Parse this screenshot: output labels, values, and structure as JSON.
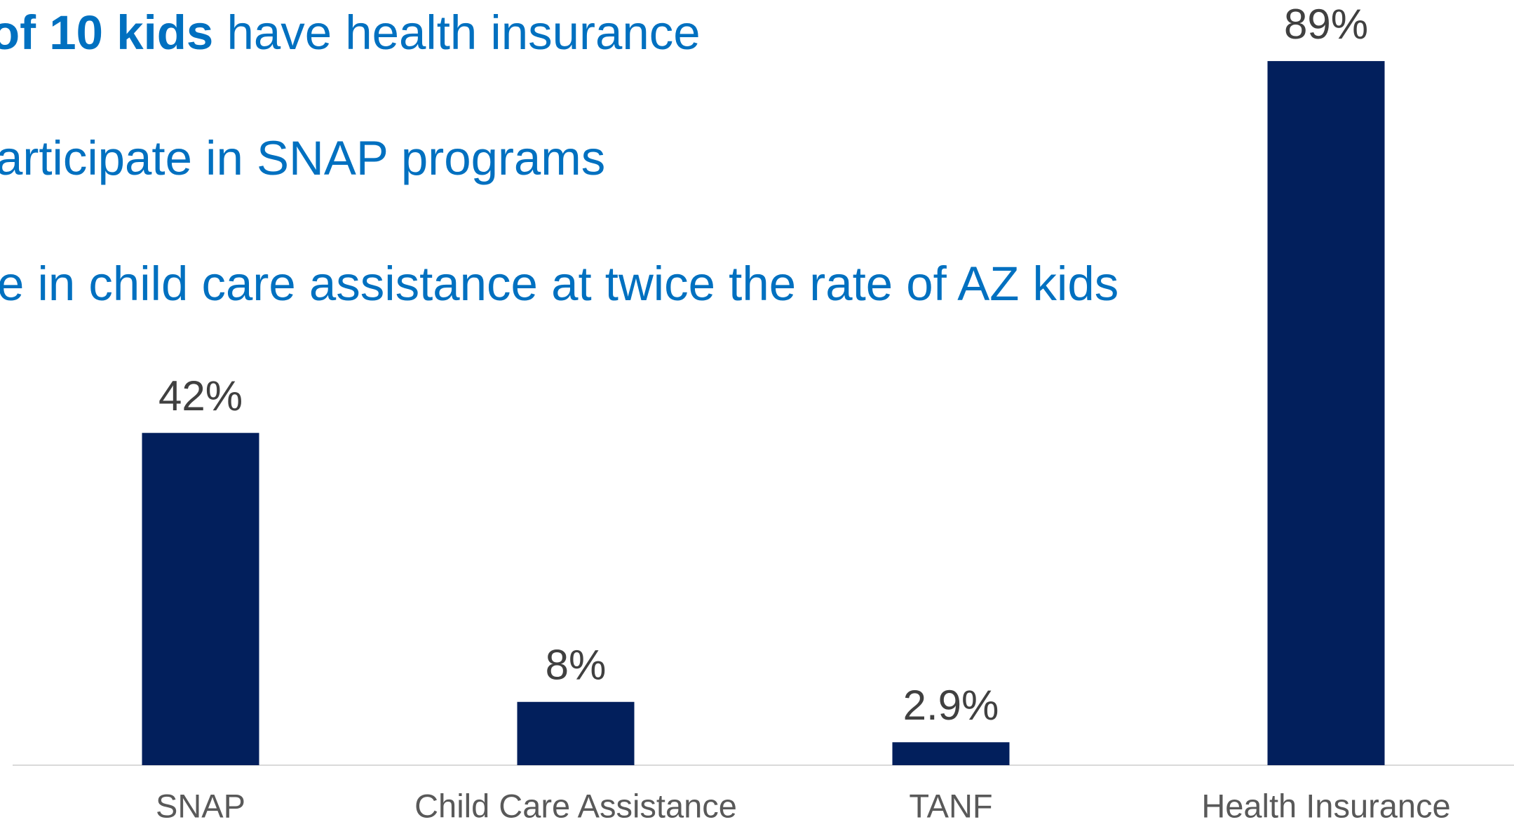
{
  "chart_data": {
    "type": "bar",
    "annotations": [
      {
        "bold": "of 10 kids",
        "text": "have health insurance"
      },
      {
        "text": "articipate in SNAP programs"
      },
      {
        "text": "e in child care assistance at twice the rate of AZ kids"
      }
    ],
    "categories": [
      "SNAP",
      "Child Care Assistance",
      "TANF",
      "Health Insurance"
    ],
    "values": [
      42,
      8,
      2.9,
      89
    ],
    "value_labels": [
      "42%",
      "8%",
      "2.9%",
      "89%"
    ],
    "color": "#021f5c",
    "ylim": [
      0,
      100
    ]
  }
}
